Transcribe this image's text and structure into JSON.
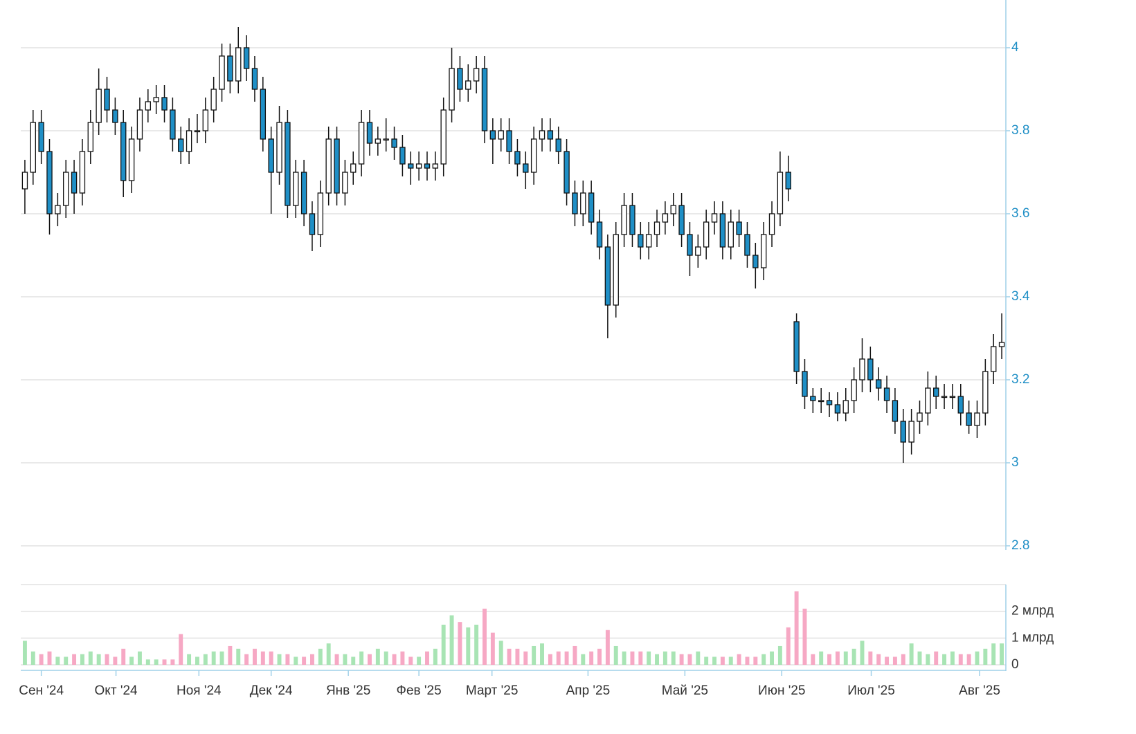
{
  "chart_data": {
    "type": "candlestick",
    "up_color": "#ffffff",
    "down_color": "#1f8fc6",
    "xlim": [
      0,
      120
    ],
    "xticks": [
      {
        "value": 2.5,
        "label": "Сен '24"
      },
      {
        "value": 11.6,
        "label": "Окт '24"
      },
      {
        "value": 21.7,
        "label": "Ноя '24"
      },
      {
        "value": 30.5,
        "label": "Дек '24"
      },
      {
        "value": 39.9,
        "label": "Янв '25"
      },
      {
        "value": 48.5,
        "label": "Фев '25"
      },
      {
        "value": 57.4,
        "label": "Март '25"
      },
      {
        "value": 69.1,
        "label": "Апр '25"
      },
      {
        "value": 80.9,
        "label": "Май '25"
      },
      {
        "value": 92.7,
        "label": "Июн '25"
      },
      {
        "value": 103.6,
        "label": "Июл '25"
      },
      {
        "value": 116.8,
        "label": "Авг '25"
      }
    ],
    "ylim": [
      2.8,
      4.1
    ],
    "yticks": [
      2.8,
      3,
      3.2,
      3.4,
      3.6,
      3.8,
      4
    ],
    "grid": true,
    "ohlc": [
      [
        3.66,
        3.73,
        3.6,
        3.7
      ],
      [
        3.7,
        3.85,
        3.67,
        3.82
      ],
      [
        3.82,
        3.85,
        3.72,
        3.75
      ],
      [
        3.75,
        3.78,
        3.55,
        3.6
      ],
      [
        3.6,
        3.65,
        3.57,
        3.62
      ],
      [
        3.62,
        3.73,
        3.59,
        3.7
      ],
      [
        3.7,
        3.73,
        3.6,
        3.65
      ],
      [
        3.65,
        3.78,
        3.62,
        3.75
      ],
      [
        3.75,
        3.85,
        3.72,
        3.82
      ],
      [
        3.82,
        3.95,
        3.79,
        3.9
      ],
      [
        3.9,
        3.93,
        3.82,
        3.85
      ],
      [
        3.85,
        3.88,
        3.79,
        3.82
      ],
      [
        3.82,
        3.85,
        3.64,
        3.68
      ],
      [
        3.68,
        3.81,
        3.65,
        3.78
      ],
      [
        3.78,
        3.88,
        3.75,
        3.85
      ],
      [
        3.85,
        3.9,
        3.82,
        3.87
      ],
      [
        3.87,
        3.91,
        3.84,
        3.88
      ],
      [
        3.88,
        3.91,
        3.82,
        3.85
      ],
      [
        3.85,
        3.88,
        3.75,
        3.78
      ],
      [
        3.78,
        3.81,
        3.72,
        3.75
      ],
      [
        3.75,
        3.83,
        3.72,
        3.8
      ],
      [
        3.8,
        3.84,
        3.77,
        3.8
      ],
      [
        3.8,
        3.88,
        3.77,
        3.85
      ],
      [
        3.85,
        3.93,
        3.82,
        3.9
      ],
      [
        3.9,
        4.01,
        3.87,
        3.98
      ],
      [
        3.98,
        4.01,
        3.89,
        3.92
      ],
      [
        3.92,
        4.05,
        3.89,
        4.0
      ],
      [
        4.0,
        4.03,
        3.92,
        3.95
      ],
      [
        3.95,
        3.98,
        3.87,
        3.9
      ],
      [
        3.9,
        3.93,
        3.75,
        3.78
      ],
      [
        3.78,
        3.81,
        3.6,
        3.7
      ],
      [
        3.7,
        3.86,
        3.67,
        3.82
      ],
      [
        3.82,
        3.85,
        3.59,
        3.62
      ],
      [
        3.62,
        3.73,
        3.59,
        3.7
      ],
      [
        3.7,
        3.73,
        3.57,
        3.6
      ],
      [
        3.6,
        3.63,
        3.51,
        3.55
      ],
      [
        3.55,
        3.68,
        3.52,
        3.65
      ],
      [
        3.65,
        3.81,
        3.62,
        3.78
      ],
      [
        3.78,
        3.81,
        3.62,
        3.65
      ],
      [
        3.65,
        3.73,
        3.62,
        3.7
      ],
      [
        3.7,
        3.75,
        3.67,
        3.72
      ],
      [
        3.72,
        3.85,
        3.69,
        3.82
      ],
      [
        3.82,
        3.85,
        3.74,
        3.77
      ],
      [
        3.77,
        3.81,
        3.74,
        3.78
      ],
      [
        3.78,
        3.83,
        3.75,
        3.78
      ],
      [
        3.78,
        3.81,
        3.73,
        3.76
      ],
      [
        3.76,
        3.79,
        3.69,
        3.72
      ],
      [
        3.72,
        3.75,
        3.67,
        3.71
      ],
      [
        3.71,
        3.75,
        3.68,
        3.72
      ],
      [
        3.72,
        3.75,
        3.68,
        3.71
      ],
      [
        3.71,
        3.75,
        3.68,
        3.72
      ],
      [
        3.72,
        3.88,
        3.69,
        3.85
      ],
      [
        3.85,
        4.0,
        3.82,
        3.95
      ],
      [
        3.95,
        3.98,
        3.87,
        3.9
      ],
      [
        3.9,
        3.96,
        3.87,
        3.92
      ],
      [
        3.92,
        3.98,
        3.89,
        3.95
      ],
      [
        3.95,
        3.98,
        3.77,
        3.8
      ],
      [
        3.8,
        3.83,
        3.72,
        3.78
      ],
      [
        3.78,
        3.83,
        3.75,
        3.8
      ],
      [
        3.8,
        3.83,
        3.72,
        3.75
      ],
      [
        3.75,
        3.78,
        3.69,
        3.72
      ],
      [
        3.72,
        3.75,
        3.66,
        3.7
      ],
      [
        3.7,
        3.81,
        3.67,
        3.78
      ],
      [
        3.78,
        3.83,
        3.75,
        3.8
      ],
      [
        3.8,
        3.83,
        3.75,
        3.78
      ],
      [
        3.78,
        3.81,
        3.72,
        3.75
      ],
      [
        3.75,
        3.78,
        3.62,
        3.65
      ],
      [
        3.65,
        3.68,
        3.57,
        3.6
      ],
      [
        3.6,
        3.68,
        3.57,
        3.65
      ],
      [
        3.65,
        3.68,
        3.55,
        3.58
      ],
      [
        3.58,
        3.61,
        3.49,
        3.52
      ],
      [
        3.52,
        3.55,
        3.3,
        3.38
      ],
      [
        3.38,
        3.58,
        3.35,
        3.55
      ],
      [
        3.55,
        3.65,
        3.52,
        3.62
      ],
      [
        3.62,
        3.65,
        3.52,
        3.55
      ],
      [
        3.55,
        3.58,
        3.49,
        3.52
      ],
      [
        3.52,
        3.58,
        3.49,
        3.55
      ],
      [
        3.55,
        3.61,
        3.52,
        3.58
      ],
      [
        3.58,
        3.63,
        3.55,
        3.6
      ],
      [
        3.6,
        3.65,
        3.57,
        3.62
      ],
      [
        3.62,
        3.65,
        3.52,
        3.55
      ],
      [
        3.55,
        3.58,
        3.45,
        3.5
      ],
      [
        3.5,
        3.55,
        3.47,
        3.52
      ],
      [
        3.52,
        3.61,
        3.49,
        3.58
      ],
      [
        3.58,
        3.63,
        3.55,
        3.6
      ],
      [
        3.6,
        3.63,
        3.49,
        3.52
      ],
      [
        3.52,
        3.61,
        3.49,
        3.58
      ],
      [
        3.58,
        3.61,
        3.52,
        3.55
      ],
      [
        3.55,
        3.58,
        3.47,
        3.5
      ],
      [
        3.5,
        3.53,
        3.42,
        3.47
      ],
      [
        3.47,
        3.58,
        3.44,
        3.55
      ],
      [
        3.55,
        3.63,
        3.52,
        3.6
      ],
      [
        3.6,
        3.75,
        3.57,
        3.7
      ],
      [
        3.7,
        3.74,
        3.63,
        3.66
      ],
      [
        3.34,
        3.36,
        3.19,
        3.22
      ],
      [
        3.22,
        3.25,
        3.13,
        3.16
      ],
      [
        3.16,
        3.18,
        3.12,
        3.15
      ],
      [
        3.15,
        3.18,
        3.12,
        3.15
      ],
      [
        3.15,
        3.17,
        3.11,
        3.14
      ],
      [
        3.14,
        3.17,
        3.1,
        3.12
      ],
      [
        3.12,
        3.18,
        3.1,
        3.15
      ],
      [
        3.15,
        3.23,
        3.12,
        3.2
      ],
      [
        3.2,
        3.3,
        3.17,
        3.25
      ],
      [
        3.25,
        3.28,
        3.17,
        3.2
      ],
      [
        3.2,
        3.23,
        3.15,
        3.18
      ],
      [
        3.18,
        3.21,
        3.12,
        3.15
      ],
      [
        3.15,
        3.18,
        3.07,
        3.1
      ],
      [
        3.1,
        3.13,
        3.0,
        3.05
      ],
      [
        3.05,
        3.13,
        3.02,
        3.1
      ],
      [
        3.1,
        3.15,
        3.07,
        3.12
      ],
      [
        3.12,
        3.22,
        3.09,
        3.18
      ],
      [
        3.18,
        3.21,
        3.13,
        3.16
      ],
      [
        3.16,
        3.19,
        3.13,
        3.16
      ],
      [
        3.16,
        3.19,
        3.13,
        3.16
      ],
      [
        3.16,
        3.19,
        3.09,
        3.12
      ],
      [
        3.12,
        3.15,
        3.07,
        3.09
      ],
      [
        3.09,
        3.15,
        3.06,
        3.12
      ],
      [
        3.12,
        3.25,
        3.09,
        3.22
      ],
      [
        3.22,
        3.31,
        3.19,
        3.28
      ],
      [
        3.28,
        3.36,
        3.25,
        3.29
      ]
    ],
    "volume": {
      "type": "bar",
      "up_color": "#a8e4b4",
      "down_color": "#f6a8c4",
      "ylim": [
        0,
        3
      ],
      "yticks": [
        0,
        {
          "value": 1,
          "label": "1 млрд"
        },
        {
          "value": 2,
          "label": "2 млрд"
        }
      ],
      "values": [
        0.9,
        0.5,
        0.4,
        0.5,
        0.3,
        0.3,
        0.4,
        0.4,
        0.5,
        0.4,
        0.4,
        0.3,
        0.6,
        0.3,
        0.5,
        0.2,
        0.2,
        0.2,
        0.2,
        1.15,
        0.4,
        0.3,
        0.4,
        0.5,
        0.5,
        0.7,
        0.6,
        0.4,
        0.6,
        0.5,
        0.5,
        0.4,
        0.4,
        0.3,
        0.3,
        0.4,
        0.6,
        0.8,
        0.4,
        0.4,
        0.3,
        0.5,
        0.4,
        0.6,
        0.5,
        0.4,
        0.5,
        0.3,
        0.3,
        0.5,
        0.6,
        1.5,
        1.85,
        1.6,
        1.4,
        1.5,
        2.1,
        1.2,
        0.9,
        0.6,
        0.6,
        0.5,
        0.7,
        0.8,
        0.4,
        0.5,
        0.5,
        0.7,
        0.4,
        0.5,
        0.6,
        1.3,
        0.7,
        0.5,
        0.5,
        0.5,
        0.5,
        0.4,
        0.5,
        0.5,
        0.4,
        0.4,
        0.5,
        0.3,
        0.3,
        0.3,
        0.3,
        0.4,
        0.3,
        0.3,
        0.4,
        0.5,
        0.7,
        1.4,
        2.75,
        2.1,
        0.4,
        0.5,
        0.4,
        0.5,
        0.5,
        0.6,
        0.9,
        0.5,
        0.4,
        0.3,
        0.3,
        0.4,
        0.8,
        0.5,
        0.4,
        0.5,
        0.4,
        0.5,
        0.4,
        0.4,
        0.5,
        0.6,
        0.8,
        0.8
      ]
    }
  }
}
